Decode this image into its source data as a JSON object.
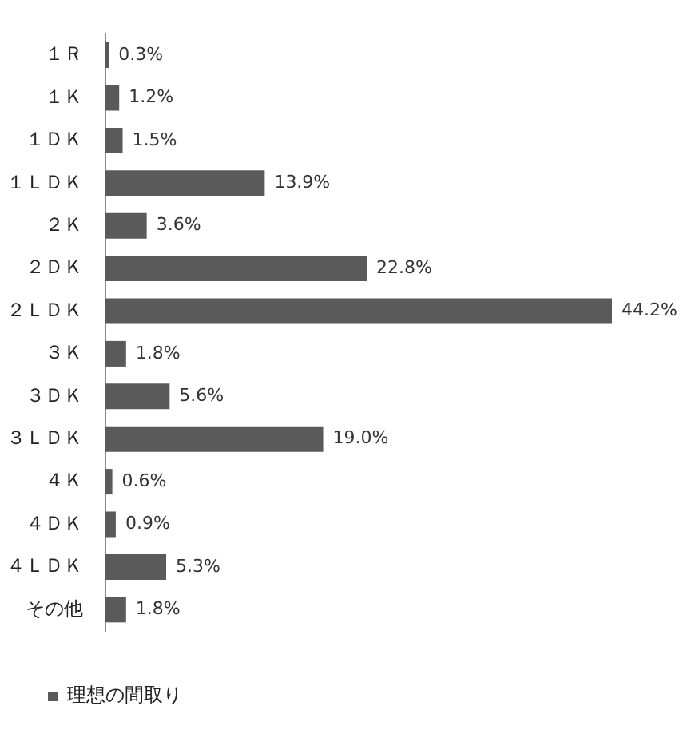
{
  "chart_data": {
    "type": "bar",
    "orientation": "horizontal",
    "categories": [
      "１Ｒ",
      "１Ｋ",
      "１ＤＫ",
      "１ＬＤＫ",
      "２Ｋ",
      "２ＤＫ",
      "２ＬＤＫ",
      "３Ｋ",
      "３ＤＫ",
      "３ＬＤＫ",
      "４Ｋ",
      "４ＤＫ",
      "４ＬＤＫ",
      "その他"
    ],
    "series": [
      {
        "name": "理想の間取り",
        "color": "#5a5a5a",
        "values": [
          0.3,
          1.2,
          1.5,
          13.9,
          3.6,
          22.8,
          44.2,
          1.8,
          5.6,
          19.0,
          0.6,
          0.9,
          5.3,
          1.8
        ],
        "value_labels": [
          "0.3%",
          "1.2%",
          "1.5%",
          "13.9%",
          "3.6%",
          "22.8%",
          "44.2%",
          "1.8%",
          "5.6%",
          "19.0%",
          "0.6%",
          "0.9%",
          "5.3%",
          "1.8%"
        ]
      }
    ],
    "legend": "bottom left"
  }
}
